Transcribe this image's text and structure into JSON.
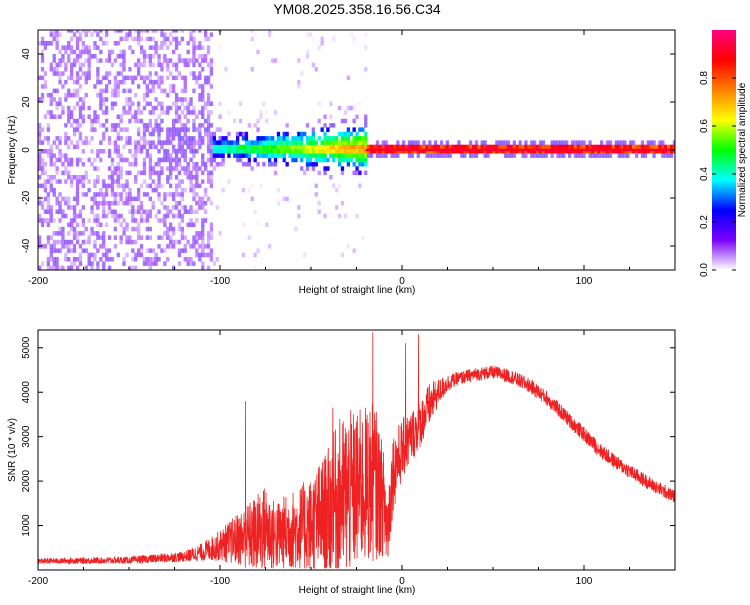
{
  "title": "YM08.2025.358.16.56.C34",
  "chart_data": [
    {
      "type": "heatmap",
      "name": "spectrogram",
      "xlabel": "Height of straight line (km)",
      "ylabel": "Frequency (Hz)",
      "xlim": [
        -200,
        150
      ],
      "ylim": [
        -50,
        50
      ],
      "xticks": [
        -200,
        -100,
        0,
        100
      ],
      "xtick_labels": [
        "-200",
        "-100",
        "0",
        "100"
      ],
      "yticks": [
        -40,
        -20,
        0,
        20,
        40
      ],
      "ytick_labels": [
        "-40",
        "-20",
        "0",
        "20",
        "40"
      ],
      "colorbar": {
        "label": "Normalized spectral amplitude",
        "range": [
          0,
          1
        ],
        "ticks": [
          0.0,
          0.2,
          0.4,
          0.6,
          0.8
        ],
        "tick_labels": [
          "0.0",
          "0.2",
          "0.4",
          "0.6",
          "0.8"
        ],
        "colormap": [
          "#ffffff",
          "#7a00ff",
          "#0000ff",
          "#00ffff",
          "#00ff00",
          "#ffff00",
          "#ff8000",
          "#ff0000",
          "#ff0080"
        ]
      },
      "regions": [
        {
          "x": [
            -200,
            -105
          ],
          "freq_spread_hz": 50,
          "amplitude": 0.08,
          "note": "broadband noise"
        },
        {
          "x": [
            -140,
            -100
          ],
          "freq_spread_hz": 12,
          "amplitude": 0.12
        },
        {
          "x": [
            -105,
            -20
          ],
          "freq_spread_hz": 6,
          "amplitude": 0.35,
          "center_hz": 0
        },
        {
          "x": [
            -20,
            150
          ],
          "freq_spread_hz": 1,
          "amplitude": 0.9,
          "center_hz": 0
        }
      ]
    },
    {
      "type": "line",
      "name": "snr",
      "xlabel": "Height of straight line (km)",
      "ylabel": "SNR (10 * v/v)",
      "xlim": [
        -200,
        150
      ],
      "ylim": [
        0,
        5400
      ],
      "xticks": [
        -200,
        -100,
        0,
        100
      ],
      "xtick_labels": [
        "-200",
        "-100",
        "0",
        "100"
      ],
      "yticks": [
        1000,
        2000,
        3000,
        4000,
        5000
      ],
      "ytick_labels": [
        "1000",
        "2000",
        "3000",
        "4000",
        "5000"
      ],
      "color": "#ee2222",
      "envelope": {
        "x": [
          -200,
          -150,
          -120,
          -110,
          -100,
          -90,
          -80,
          -75,
          -70,
          -60,
          -50,
          -40,
          -35,
          -30,
          -25,
          -20,
          -15,
          -10,
          -8,
          -5,
          0,
          5,
          10,
          15,
          20,
          25,
          30,
          40,
          50,
          60,
          70,
          80,
          90,
          100,
          110,
          120,
          130,
          140,
          150
        ],
        "mean": [
          200,
          220,
          300,
          400,
          550,
          700,
          800,
          950,
          750,
          900,
          1000,
          1300,
          1600,
          1700,
          1800,
          1900,
          2000,
          1500,
          900,
          2200,
          2700,
          3000,
          3300,
          3700,
          4000,
          4200,
          4300,
          4400,
          4450,
          4350,
          4150,
          3850,
          3450,
          3050,
          2650,
          2350,
          2100,
          1850,
          1650
        ],
        "spread": [
          60,
          80,
          120,
          200,
          350,
          600,
          900,
          1000,
          800,
          900,
          1100,
          1500,
          1800,
          1900,
          1800,
          1800,
          1800,
          1200,
          1000,
          900,
          700,
          600,
          550,
          500,
          300,
          200,
          150,
          150,
          150,
          160,
          170,
          170,
          170,
          170,
          170,
          160,
          160,
          150,
          150
        ]
      },
      "peaks": [
        {
          "x": -16,
          "y": 5350
        },
        {
          "x": 9,
          "y": 5300
        },
        {
          "x": 2,
          "y": 5100
        },
        {
          "x": -86,
          "y": 3800
        },
        {
          "x": -38,
          "y": 3650
        }
      ]
    }
  ]
}
